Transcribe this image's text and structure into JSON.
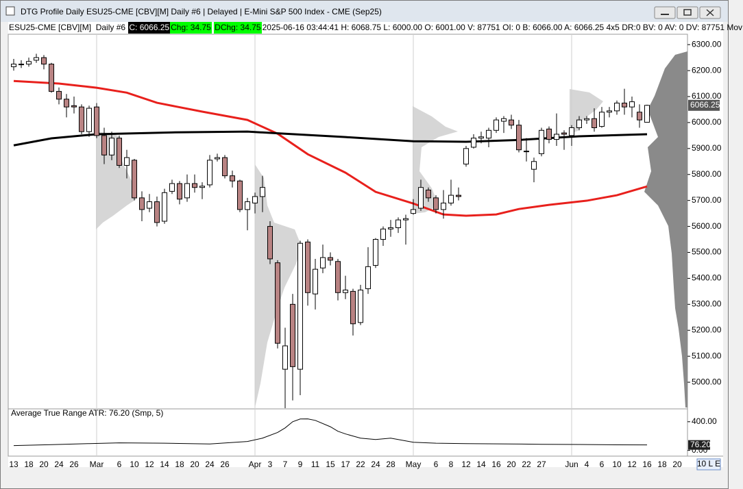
{
  "window": {
    "title": "DTG Profile Daily ESU25-CME [CBV][M]  Daily #6 | Delayed | E-Mini S&P 500 Index - CME (Sep25)"
  },
  "info_bar": {
    "symbol": "ESU25-CME [CBV][M]  Daily #6",
    "close": "C: 6066.25",
    "change": "Chg: 34.75",
    "dchange": "DChg: 34.75",
    "details": "2025-06-16 03:44:41 H: 6068.75 L: 6000.00 O: 6001.00 V: 87751 OI: 0 B: 6066.00 A: 6066.25 4x5 DR:0 BV: 0 AV: 0 DV: 87751 Mov"
  },
  "chart_data": [
    {
      "type": "candlestick",
      "categories": [
        "13",
        null,
        "18",
        null,
        "20",
        null,
        "24",
        null,
        "26",
        null,
        null,
        "Mar",
        null,
        null,
        "6",
        null,
        "10",
        null,
        "12",
        null,
        "14",
        null,
        "18",
        null,
        "20",
        null,
        "24",
        null,
        "26",
        null,
        null,
        null,
        "Apr",
        null,
        "3",
        null,
        "7",
        null,
        "9",
        null,
        "11",
        null,
        "15",
        null,
        "17",
        null,
        "22",
        null,
        "24",
        null,
        "28",
        null,
        null,
        "May",
        null,
        null,
        "6",
        null,
        "8",
        null,
        "12",
        null,
        "14",
        null,
        "16",
        null,
        "20",
        null,
        "22",
        null,
        "27",
        null,
        null,
        null,
        "Jun",
        null,
        "4",
        null,
        "6",
        null,
        "10",
        null,
        "12",
        null,
        "16",
        null,
        "18",
        null,
        "20"
      ],
      "open": [
        6215,
        6225,
        6225,
        6240,
        6250,
        6225,
        6120,
        6090,
        6065,
        6060,
        5965,
        6060,
        5950,
        5875,
        5940,
        5835,
        5855,
        5710,
        5670,
        5695,
        5620,
        5735,
        5765,
        5710,
        5765,
        5750,
        5760,
        5860,
        5865,
        5795,
        5775,
        5665,
        5690,
        5715,
        5600,
        5460,
        5050,
        5300,
        5050,
        5540,
        5340,
        5440,
        5480,
        5465,
        5345,
        5350,
        5230,
        5360,
        5450,
        5550,
        5590,
        5595,
        5625,
        5650,
        5670,
        5740,
        5710,
        5665,
        5690,
        5720,
        5840,
        5905,
        5940,
        5940,
        5970,
        6005,
        6010,
        5990,
        5890,
        5820,
        5880,
        5975,
        5935,
        5960,
        5950,
        5980,
        6010,
        6015,
        5985,
        6040,
        6045,
        6075,
        6060,
        6040,
        6001,
        null,
        null,
        null,
        null
      ],
      "high": [
        6245,
        6240,
        6250,
        6265,
        6260,
        6230,
        6135,
        6110,
        6100,
        6070,
        6065,
        6075,
        5980,
        5965,
        5950,
        5895,
        5860,
        5735,
        5725,
        5715,
        5745,
        5780,
        5775,
        5800,
        5800,
        5770,
        5875,
        5880,
        5875,
        5815,
        5780,
        5710,
        5730,
        5795,
        5620,
        5470,
        5210,
        5340,
        5545,
        5550,
        5475,
        5530,
        5500,
        5475,
        5410,
        5360,
        5375,
        5520,
        5555,
        5600,
        5625,
        5635,
        5645,
        5705,
        5780,
        5750,
        5720,
        5740,
        5780,
        5750,
        5910,
        5955,
        5965,
        5980,
        6020,
        6025,
        6030,
        6010,
        5940,
        5865,
        5980,
        5985,
        6035,
        5970,
        5990,
        6025,
        6025,
        6055,
        6060,
        6060,
        6085,
        6130,
        6100,
        6070,
        6068.75,
        null,
        null,
        null,
        null
      ],
      "low": [
        6200,
        6210,
        6215,
        6230,
        6205,
        6115,
        6070,
        6020,
        6035,
        5955,
        5945,
        5940,
        5840,
        5855,
        5825,
        5785,
        5700,
        5620,
        5655,
        5600,
        5610,
        5725,
        5685,
        5695,
        5730,
        5705,
        5750,
        5850,
        5785,
        5750,
        5655,
        5585,
        5650,
        5655,
        5455,
        5130,
        4900,
        4930,
        4950,
        5295,
        5280,
        5420,
        5450,
        5315,
        5320,
        5180,
        5220,
        5340,
        5440,
        5525,
        5560,
        5575,
        5530,
        5645,
        5660,
        5695,
        5650,
        5630,
        5680,
        5700,
        5830,
        5900,
        5920,
        5905,
        5960,
        5960,
        5975,
        5885,
        5850,
        5770,
        5870,
        5920,
        5910,
        5895,
        5910,
        5970,
        5995,
        5965,
        5980,
        6020,
        6030,
        6030,
        6020,
        5980,
        6000,
        null,
        null,
        null,
        null
      ],
      "close": [
        6225,
        6225,
        6235,
        6250,
        6225,
        6120,
        6090,
        6060,
        6060,
        5965,
        6055,
        5950,
        5875,
        5940,
        5835,
        5865,
        5710,
        5665,
        5695,
        5615,
        5730,
        5765,
        5705,
        5765,
        5750,
        5755,
        5855,
        5865,
        5795,
        5775,
        5665,
        5695,
        5715,
        5750,
        5475,
        5150,
        5140,
        5060,
        5535,
        5345,
        5435,
        5480,
        5470,
        5345,
        5355,
        5225,
        5355,
        5445,
        5550,
        5590,
        5595,
        5625,
        5630,
        5665,
        5750,
        5710,
        5665,
        5690,
        5720,
        5715,
        5900,
        5940,
        5945,
        5970,
        6010,
        6015,
        5990,
        5895,
        5890,
        5850,
        5970,
        5935,
        5955,
        5955,
        5980,
        6010,
        6015,
        5980,
        6040,
        6045,
        6075,
        6060,
        6080,
        6010,
        6066.25,
        null,
        null,
        null,
        null
      ],
      "up_color": "#ffffff",
      "down_color": "#b98383",
      "overlays": [
        {
          "color": "#e8201c",
          "x": [
            0,
            6,
            11,
            15,
            19,
            25,
            31,
            35,
            39,
            44,
            48,
            53,
            57,
            60,
            64,
            67,
            71,
            76,
            80,
            84
          ],
          "values": [
            6160,
            6150,
            6134,
            6115,
            6076,
            6042,
            6010,
            5957,
            5878,
            5807,
            5733,
            5688,
            5646,
            5641,
            5646,
            5667,
            5683,
            5699,
            5720,
            5754
          ]
        },
        {
          "color": "#000000",
          "x": [
            0,
            5,
            11,
            21,
            31,
            36,
            44,
            53,
            60,
            67,
            75,
            84
          ],
          "values": [
            5912,
            5939,
            5955,
            5962,
            5965,
            5957,
            5944,
            5928,
            5926,
            5933,
            5947,
            5955
          ]
        }
      ],
      "ylim": [
        4900,
        6340
      ],
      "yticks": [
        {
          "value": 6300,
          "label": "6300.00"
        },
        {
          "value": 6200,
          "label": "6200.00"
        },
        {
          "value": 6100,
          "label": "6100.00"
        },
        {
          "value": 6000,
          "label": "6000.00"
        },
        {
          "value": 5900,
          "label": "5900.00"
        },
        {
          "value": 5800,
          "label": "5800.00"
        },
        {
          "value": 5700,
          "label": "5700.00"
        },
        {
          "value": 5600,
          "label": "5600.00"
        },
        {
          "value": 5500,
          "label": "5500.00"
        },
        {
          "value": 5400,
          "label": "5400.00"
        },
        {
          "value": 5300,
          "label": "5300.00"
        },
        {
          "value": 5200,
          "label": "5200.00"
        },
        {
          "value": 5100,
          "label": "5100.00"
        },
        {
          "value": 5000,
          "label": "5000.00"
        }
      ],
      "current": {
        "value": 6066.25,
        "label": "6066.25"
      },
      "grid": false
    },
    {
      "type": "line",
      "title": "Average True Range  ATR: 76.20  (Smp, 5)",
      "color": "#000000",
      "x": [
        0,
        5,
        10,
        14,
        20,
        26,
        31,
        33,
        35,
        36,
        37,
        38,
        39,
        40,
        42,
        43,
        44,
        46,
        48,
        50,
        53,
        56,
        60,
        66,
        70,
        75,
        80,
        84
      ],
      "values": [
        67,
        80,
        95,
        105,
        100,
        90,
        124,
        171,
        250,
        314,
        400,
        438,
        440,
        419,
        330,
        267,
        230,
        171,
        152,
        171,
        114,
        100,
        95,
        90,
        85,
        82,
        78,
        76.2
      ],
      "ylim": [
        -80,
        570
      ],
      "yticks": [
        {
          "value": 400,
          "label": "400.00"
        },
        {
          "value": 0,
          "label": "0.00"
        }
      ],
      "current": {
        "value": 76.2,
        "label": "76.20"
      }
    }
  ],
  "status": "10 L E"
}
